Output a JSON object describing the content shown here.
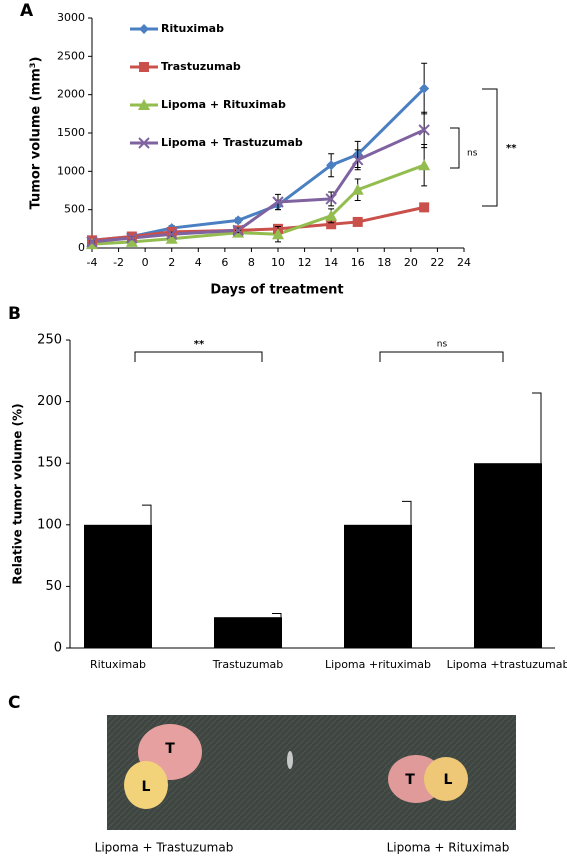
{
  "panels": [
    "A",
    "B",
    "C"
  ],
  "chart_data": [
    {
      "type": "line",
      "xlabel": "Days of treatment",
      "ylabel": "Tumor volume (mm³)",
      "xlim": [
        -4,
        24
      ],
      "xticks": [
        -4,
        -2,
        0,
        2,
        4,
        6,
        8,
        10,
        12,
        14,
        16,
        18,
        20,
        22,
        24
      ],
      "ylim": [
        0,
        3000
      ],
      "yticks": [
        0,
        500,
        1000,
        1500,
        2000,
        2500,
        3000
      ],
      "x": [
        -4,
        -1,
        2,
        7,
        10,
        14,
        16,
        21
      ],
      "series": [
        {
          "name": "Rituximab",
          "color": "#4a7fc1",
          "marker": "diamond",
          "values": [
            100,
            150,
            260,
            360,
            560,
            1080,
            1220,
            2080
          ],
          "errors": [
            20,
            20,
            30,
            30,
            60,
            150,
            170,
            330
          ]
        },
        {
          "name": "Trastuzumab",
          "color": "#c9504b",
          "marker": "square",
          "values": [
            100,
            150,
            210,
            230,
            250,
            310,
            340,
            530
          ],
          "errors": [
            15,
            15,
            20,
            20,
            25,
            30,
            30,
            40
          ]
        },
        {
          "name": "Lipoma + Rituximab",
          "color": "#93bd4f",
          "marker": "triangle",
          "values": [
            50,
            80,
            120,
            200,
            180,
            420,
            760,
            1080
          ],
          "errors": [
            15,
            15,
            20,
            30,
            100,
            90,
            140,
            270
          ]
        },
        {
          "name": "Lipoma + Trastuzumab",
          "color": "#7f62a0",
          "marker": "x",
          "values": [
            80,
            130,
            180,
            230,
            600,
            640,
            1150,
            1540
          ],
          "errors": [
            15,
            20,
            25,
            30,
            100,
            90,
            130,
            230
          ]
        }
      ],
      "annotations": [
        "ns",
        "**"
      ]
    },
    {
      "type": "bar",
      "ylabel": "Relative tumor volume (%)",
      "categories": [
        "Rituximab",
        "Trastuzumab",
        "Lipoma +rituximab",
        "Lipoma +trastuzumab"
      ],
      "values": [
        100,
        25,
        100,
        150
      ],
      "errors": [
        16,
        3,
        19,
        57
      ],
      "color": "#000000",
      "ylim": [
        0,
        250
      ],
      "yticks": [
        0,
        50,
        100,
        150,
        200,
        250
      ],
      "annotations": [
        "**",
        "ns"
      ]
    }
  ],
  "photo": {
    "labels": [
      "T",
      "L",
      "T",
      "L"
    ],
    "captions": [
      "Lipoma + Trastuzumab",
      "Lipoma + Rituximab"
    ]
  }
}
